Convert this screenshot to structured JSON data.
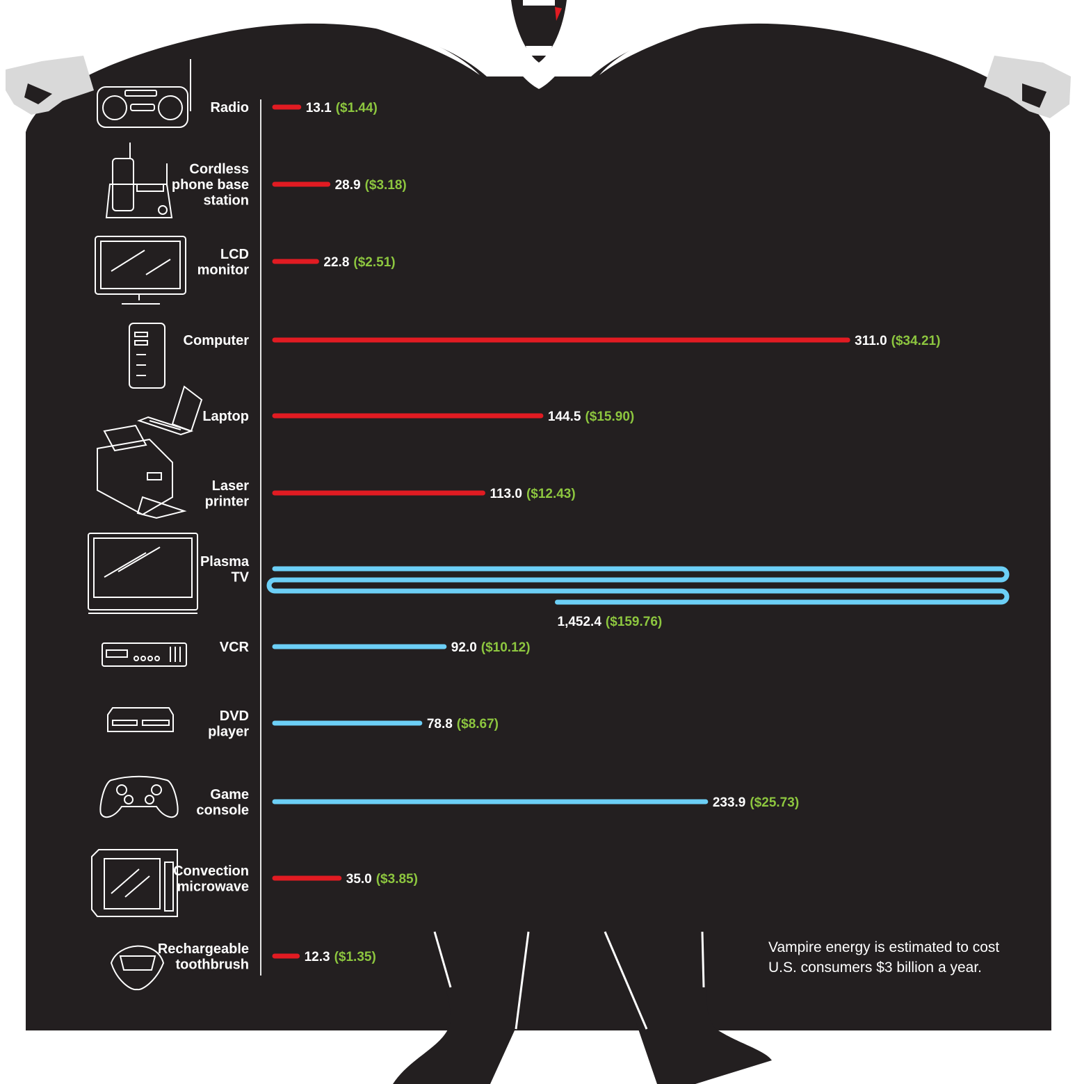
{
  "colors": {
    "background": "#231f20",
    "cape_white": "#ffffff",
    "hand_gray": "#d9d9d9",
    "red": "#e11b22",
    "blue": "#6ccff6",
    "kwh_text": "#ffffff",
    "cost_text": "#8dc63f"
  },
  "icons": [
    "radio-icon",
    "cordless-phone-icon",
    "lcd-monitor-icon",
    "computer-tower-icon",
    "laptop-icon",
    "laser-printer-icon",
    "plasma-tv-icon",
    "vcr-icon",
    "dvd-player-icon",
    "game-controller-icon",
    "microwave-icon",
    "fangs-icon"
  ],
  "note": {
    "line1": "Vampire energy is estimated to cost",
    "line2": "U.S. consumers $3 billion a year."
  },
  "chart_data": {
    "type": "bar",
    "orientation": "horizontal",
    "categories": [
      "Radio",
      "Cordless phone base station",
      "LCD monitor",
      "Computer",
      "Laptop",
      "Laser printer",
      "Plasma TV",
      "VCR",
      "DVD player",
      "Game console",
      "Convection microwave",
      "Rechargeable toothbrush"
    ],
    "label_lines": [
      [
        "Radio"
      ],
      [
        "Cordless",
        "phone base",
        "station"
      ],
      [
        "LCD",
        "monitor"
      ],
      [
        "Computer"
      ],
      [
        "Laptop"
      ],
      [
        "Laser",
        "printer"
      ],
      [
        "Plasma",
        "TV"
      ],
      [
        "VCR"
      ],
      [
        "DVD",
        "player"
      ],
      [
        "Game",
        "console"
      ],
      [
        "Convection",
        "microwave"
      ],
      [
        "Rechargeable",
        "toothbrush"
      ]
    ],
    "series": [
      {
        "values": [
          13.1,
          28.9,
          22.8,
          311.0,
          144.5,
          113.0,
          1452.4,
          92.0,
          78.8,
          233.9,
          35.0,
          12.3
        ]
      },
      {
        "values": [
          1.44,
          3.18,
          2.51,
          34.21,
          15.9,
          12.43,
          159.76,
          10.12,
          8.67,
          25.73,
          3.85,
          1.35
        ]
      }
    ],
    "value_labels": [
      "13.1",
      "28.9",
      "22.8",
      "311.0",
      "144.5",
      "113.0",
      "1,452.4",
      "92.0",
      "78.8",
      "233.9",
      "35.0",
      "12.3"
    ],
    "cost_labels": [
      "($1.44)",
      "($3.18)",
      "($2.51)",
      "($34.21)",
      "($15.90)",
      "($12.43)",
      "($159.76)",
      "($10.12)",
      "($8.67)",
      "($25.73)",
      "($3.85)",
      "($1.35)"
    ],
    "bar_colors": [
      "red",
      "red",
      "red",
      "red",
      "red",
      "red",
      "blue",
      "blue",
      "blue",
      "blue",
      "red",
      "red"
    ],
    "grid": false,
    "legend": "none"
  }
}
